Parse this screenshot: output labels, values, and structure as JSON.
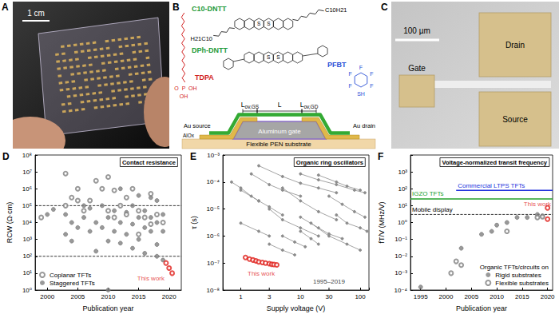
{
  "panels": {
    "A": {
      "label": "A",
      "scale_bar": "1 cm"
    },
    "B": {
      "label": "B",
      "molecules": [
        {
          "name": "C10-DNTT",
          "substituents": [
            "C10H21",
            "H21C10"
          ],
          "atoms": [
            "S",
            "S"
          ]
        },
        {
          "name": "DPh-DNTT",
          "atoms": [
            "S",
            "S"
          ]
        }
      ],
      "tdpa": {
        "name": "TDPA",
        "atoms": [
          "O",
          "P",
          "OH",
          "OH"
        ]
      },
      "pfbt": {
        "name": "PFBT",
        "atoms": [
          "F",
          "F",
          "F",
          "F",
          "F",
          "SH"
        ]
      },
      "dimensions": [
        "Lov,GS",
        "L",
        "Lov,GD"
      ],
      "layers": {
        "source": "Au source",
        "drain": "Au drain",
        "dielectric": "AlOx",
        "gate": "Aluminum gate",
        "substrate": "Flexible PEN substrate"
      }
    },
    "C": {
      "label": "C",
      "scale_bar": "100 µm",
      "electrodes": [
        "Gate",
        "Drain",
        "Source"
      ]
    }
  },
  "chart_data": [
    {
      "panel": "D",
      "type": "scatter",
      "title": "Contact resistance",
      "x_label": "Publication year",
      "y_label": "RCW (Ω·cm)",
      "log": "y",
      "grid": false,
      "legend": "lower left",
      "xlim": [
        1998,
        2022
      ],
      "xticks": [
        2000,
        2005,
        2010,
        2015,
        2020
      ],
      "ylim": [
        1,
        100000000
      ],
      "yticks": [
        {
          "value": 1,
          "label": "10⁰"
        },
        {
          "value": 10,
          "label": "10¹"
        },
        {
          "value": 100,
          "label": "10²"
        },
        {
          "value": 1000,
          "label": "10³"
        },
        {
          "value": 10000,
          "label": "10⁴"
        },
        {
          "value": 100000,
          "label": "10⁵"
        },
        {
          "value": 1000000,
          "label": "10⁶"
        },
        {
          "value": 10000000,
          "label": "10⁷"
        },
        {
          "value": 100000000,
          "label": "10⁸"
        }
      ],
      "series": [
        {
          "name": "Coplanar TFTs",
          "color": "#808080",
          "marker": "open_circle",
          "x": [
            1999,
            2003,
            2003,
            2004,
            2005,
            2005,
            2006,
            2007,
            2008,
            2009,
            2010,
            2010,
            2011,
            2011,
            2012,
            2013,
            2013,
            2014,
            2015,
            2015,
            2016,
            2017,
            2017,
            2018,
            2019
          ],
          "values": [
            20000,
            8000000,
            100000,
            300000,
            200000,
            1000000,
            50000,
            200000,
            3000000,
            1000000,
            5000000,
            50000,
            800000,
            20000,
            100000,
            30000,
            300000,
            1000000,
            50000,
            2000,
            20000,
            8000,
            500000,
            30000,
            10000
          ]
        },
        {
          "name": "Staggered TFTs",
          "color": "#808080",
          "marker": "circle",
          "x": [
            2000,
            2001,
            2003,
            2003,
            2004,
            2004,
            2005,
            2006,
            2006,
            2007,
            2007,
            2008,
            2008,
            2009,
            2009,
            2010,
            2010,
            2010,
            2011,
            2011,
            2012,
            2012,
            2012,
            2013,
            2013,
            2014,
            2014,
            2014,
            2015,
            2015,
            2015,
            2016,
            2016,
            2016,
            2017,
            2017,
            2017,
            2018,
            2018,
            2018,
            2018,
            2019,
            2019,
            2019
          ],
          "values": [
            30000,
            60000,
            2000,
            30000,
            10000,
            800,
            5000,
            20000,
            100000,
            3000,
            70000,
            10000,
            200,
            5000,
            100000,
            20000,
            800,
            1,
            3000,
            50000,
            10000,
            600,
            1000000,
            2000,
            40000,
            8000,
            300,
            100000,
            20000,
            1000,
            400000,
            5000,
            150,
            50000,
            3000,
            20000,
            300000,
            10000,
            500,
            100,
            200000,
            3000,
            60,
            30000
          ]
        },
        {
          "color": "#e0201b",
          "marker": "open_circle",
          "x": [
            2019.5,
            2020,
            2020.5
          ],
          "values": [
            40,
            20,
            10
          ]
        }
      ],
      "reference_lines": [
        {
          "y": 100000,
          "color": "#000000",
          "line_style": "dashed"
        },
        {
          "y": 100,
          "color": "#000000",
          "line_style": "dashed"
        }
      ],
      "annotations": [
        {
          "text": "This work",
          "x": 2017,
          "y": 5,
          "color": "#e0201b"
        }
      ]
    },
    {
      "panel": "E",
      "type": "line",
      "title": "Organic ring oscillators",
      "x_label": "Supply voltage (V)",
      "y_label": "τ (s)",
      "log": true,
      "grid": false,
      "xlim": [
        0.5,
        140
      ],
      "xticks": [
        1,
        3,
        10,
        30,
        100
      ],
      "ylim": [
        1e-08,
        0.001
      ],
      "yticks": [
        {
          "value": 1e-08,
          "label": "10⁻⁸"
        },
        {
          "value": 1e-07,
          "label": "10⁻⁷"
        },
        {
          "value": 1e-06,
          "label": "10⁻⁶"
        },
        {
          "value": 1e-05,
          "label": "10⁻⁵"
        },
        {
          "value": 0.0001,
          "label": "10⁻⁴"
        },
        {
          "value": 0.001,
          "label": "10⁻³"
        }
      ],
      "series": [
        {
          "color": "#8c8c8c",
          "marker": "circle",
          "x": [
            1.5,
            3,
            5,
            10
          ],
          "values": [
            0.0002,
            8e-05,
            5e-05,
            3e-05
          ]
        },
        {
          "color": "#8c8c8c",
          "marker": "circle",
          "x": [
            2,
            5,
            10,
            20,
            40
          ],
          "values": [
            0.0004,
            0.00016,
            9e-05,
            6e-05,
            4e-05
          ]
        },
        {
          "color": "#8c8c8c",
          "marker": "circle",
          "x": [
            10,
            20,
            40,
            80,
            120
          ],
          "values": [
            0.0002,
            0.00012,
            8e-05,
            5e-05,
            4e-05
          ]
        },
        {
          "color": "#8c8c8c",
          "marker": "circle",
          "x": [
            20,
            40,
            60,
            100
          ],
          "values": [
            0.00018,
            0.0001,
            7e-05,
            5e-05
          ]
        },
        {
          "color": "#8c8c8c",
          "marker": "circle",
          "x": [
            5,
            10,
            20,
            40
          ],
          "values": [
            6e-05,
            2e-05,
            8e-06,
            4e-06
          ]
        },
        {
          "color": "#8c8c8c",
          "marker": "circle",
          "x": [
            1,
            2,
            3,
            5
          ],
          "values": [
            5e-05,
            2e-05,
            1.2e-05,
            6e-06
          ]
        },
        {
          "color": "#8c8c8c",
          "marker": "circle",
          "x": [
            3,
            5,
            10,
            20
          ],
          "values": [
            1e-05,
            4e-06,
            2e-06,
            1e-06
          ]
        },
        {
          "color": "#8c8c8c",
          "marker": "circle",
          "x": [
            10,
            20,
            30,
            50
          ],
          "values": [
            5e-06,
            2e-06,
            1.2e-06,
            8e-07
          ]
        },
        {
          "color": "#8c8c8c",
          "marker": "circle",
          "x": [
            15,
            30,
            60,
            100
          ],
          "values": [
            3e-06,
            1e-06,
            5e-07,
            3e-07
          ]
        },
        {
          "color": "#8c8c8c",
          "marker": "circle",
          "x": [
            40,
            60,
            100,
            130
          ],
          "values": [
            6e-06,
            3e-06,
            2e-06,
            1.5e-06
          ]
        },
        {
          "color": "#8c8c8c",
          "marker": "circle",
          "x": [
            1,
            2,
            3
          ],
          "values": [
            3e-06,
            1.5e-06,
            1e-06
          ]
        },
        {
          "color": "#8c8c8c",
          "marker": "circle",
          "x": [
            3,
            5,
            8
          ],
          "values": [
            5e-07,
            3e-07,
            2e-07
          ]
        },
        {
          "color": "#8c8c8c",
          "marker": "circle",
          "x": [
            10,
            15,
            20
          ],
          "values": [
            1.5e-06,
            8e-07,
            5e-07
          ]
        },
        {
          "color": "#8c8c8c",
          "marker": "circle",
          "x": [
            0.7,
            1,
            1.5,
            2
          ],
          "values": [
            0.0001,
            6e-05,
            3e-05,
            2e-05
          ]
        },
        {
          "color": "#8c8c8c",
          "marker": "circle",
          "x": [
            30,
            50,
            80,
            120
          ],
          "values": [
            3e-05,
            1.5e-05,
            8e-06,
            5e-06
          ]
        },
        {
          "color": "#8c8c8c",
          "marker": "circle",
          "x": [
            5,
            8,
            12
          ],
          "values": [
            1e-06,
            6e-07,
            4e-07
          ]
        },
        {
          "type": "scatter",
          "color": "#e0201b",
          "marker": "open_circle",
          "x": [
            1.2,
            1.4,
            1.6,
            1.8,
            2,
            2.3,
            2.6,
            3,
            3.3,
            3.6,
            4
          ],
          "values": [
            1.6e-07,
            1.4e-07,
            1.3e-07,
            1.2e-07,
            1.1e-07,
            1.05e-07,
            1e-07,
            9.5e-08,
            9e-08,
            8.8e-08,
            8.5e-08
          ]
        }
      ],
      "annotations": [
        {
          "text": "This work",
          "x": 2.2,
          "y": 4e-08,
          "color": "#e0201b"
        },
        {
          "text": "1995–2019",
          "x": 30,
          "y": 2e-08,
          "color": "#000000"
        }
      ]
    },
    {
      "panel": "F",
      "type": "scatter",
      "title": "Voltage-normalized transit frequency",
      "x_label": "Publication year",
      "y_label": "fT/V (MHz/V)",
      "log": "y",
      "grid": false,
      "legend": "lower right",
      "legend_title": "Organic TFTs/circuits on",
      "xlim": [
        1993,
        2021
      ],
      "xticks": [
        1995,
        2000,
        2005,
        2010,
        2015,
        2020
      ],
      "ylim": [
        0.0001,
        10000
      ],
      "yticks": [
        {
          "value": 0.0001,
          "label": "10⁻⁴"
        },
        {
          "value": 0.001,
          "label": "10⁻³"
        },
        {
          "value": 0.01,
          "label": "10⁻²"
        },
        {
          "value": 0.1,
          "label": "10⁻¹"
        },
        {
          "value": 1,
          "label": "10⁰"
        },
        {
          "value": 10,
          "label": "10¹"
        },
        {
          "value": 100,
          "label": "10²"
        },
        {
          "value": 1000,
          "label": "10³"
        }
      ],
      "series": [
        {
          "name": "Rigid substrates",
          "color": "#808080",
          "marker": "circle",
          "x": [
            1995,
            2003,
            2007,
            2009,
            2010,
            2012,
            2014,
            2016,
            2018,
            2019
          ],
          "values": [
            0.00015,
            0.03,
            0.2,
            0.3,
            0.7,
            1,
            2,
            2,
            3,
            2.5
          ]
        },
        {
          "name": "Flexible substrates",
          "color": "#808080",
          "marker": "open_circle",
          "x": [
            2001,
            2002,
            2003,
            2012,
            2018,
            2019
          ],
          "values": [
            0.001,
            0.005,
            0.003,
            0.3,
            2,
            2.2
          ]
        },
        {
          "color": "#e0201b",
          "marker": "open_circle",
          "x": [
            2020,
            2020
          ],
          "values": [
            7.4,
            1.6
          ]
        }
      ],
      "reference_lines": [
        {
          "label": "Commercial LTPS TFTs",
          "y": 80,
          "x": [
            2002,
            2021
          ],
          "color": "#2233dd",
          "line_style": "solid"
        },
        {
          "label": "IGZO TFTs",
          "y": 25,
          "color": "#22a02a",
          "line_style": "solid"
        },
        {
          "label": "Mobile display",
          "y": 3,
          "color": "#000000",
          "line_style": "dashed"
        }
      ],
      "annotations": [
        {
          "text": "This work",
          "x": 2018,
          "y": 12,
          "color": "#e0201b"
        }
      ]
    }
  ]
}
